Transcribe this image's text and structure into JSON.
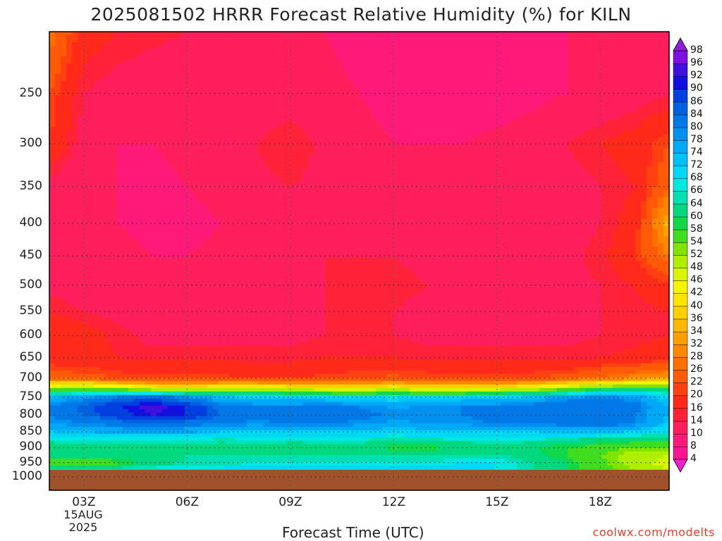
{
  "header": {
    "title": "2025081502 HRRR Forecast Relative Humidity (%) for KILN"
  },
  "footer": {
    "credit": "coolwx.com/modelts"
  },
  "chart_data": {
    "type": "heatmap",
    "title": "2025081502 HRRR Forecast Relative Humidity (%) for KILN",
    "xlabel": "Forecast Time (UTC)",
    "ylabel": "",
    "x_ticks": [
      "03Z",
      "06Z",
      "09Z",
      "12Z",
      "15Z",
      "18Z"
    ],
    "x_tick_hours": [
      3,
      6,
      9,
      12,
      15,
      18
    ],
    "x_date_labels": [
      "15AUG",
      "2025"
    ],
    "xlim_hours": [
      2,
      20
    ],
    "y_ticks": [
      250,
      300,
      350,
      400,
      450,
      500,
      550,
      600,
      650,
      700,
      750,
      800,
      850,
      900,
      950,
      1000
    ],
    "y_tick_labels": [
      "250",
      "300",
      "350",
      "400",
      "450",
      "500",
      "550",
      "600",
      "650",
      "700",
      "750",
      "800",
      "850",
      "900",
      "950",
      "1000"
    ],
    "ylim_hpa": [
      200,
      1050
    ],
    "y_scale": "log-pressure",
    "grid": true,
    "surface_pressure_hpa": 975,
    "colorbar": {
      "levels": [
        4,
        8,
        10,
        14,
        16,
        20,
        22,
        26,
        28,
        32,
        34,
        36,
        40,
        42,
        46,
        48,
        52,
        54,
        58,
        60,
        64,
        66,
        68,
        72,
        74,
        78,
        80,
        84,
        86,
        90,
        92,
        96,
        98
      ],
      "labels": [
        "4",
        "8",
        "10",
        "14",
        "16",
        "20",
        "22",
        "26",
        "28",
        "32",
        "34",
        "36",
        "40",
        "42",
        "46",
        "48",
        "52",
        "54",
        "58",
        "60",
        "64",
        "66",
        "68",
        "72",
        "74",
        "78",
        "80",
        "84",
        "86",
        "90",
        "92",
        "96",
        "98"
      ],
      "colors": [
        "#f01fd0",
        "#ff1493",
        "#ff1a7a",
        "#ff1f5c",
        "#ff2238",
        "#ff2a1a",
        "#ff4010",
        "#ff5a08",
        "#ff7000",
        "#ff8800",
        "#ffa000",
        "#ffb800",
        "#ffd000",
        "#ffe400",
        "#f8f400",
        "#d8f400",
        "#b0ee00",
        "#80e400",
        "#40dc20",
        "#10d848",
        "#00d880",
        "#00e0b0",
        "#00e8e0",
        "#00d8f8",
        "#00c0f8",
        "#00a8f8",
        "#0090f0",
        "#0078e8",
        "#0060e0",
        "#0040e0",
        "#1010e0",
        "#4010e0",
        "#8010e0",
        "#9020d8"
      ],
      "extend": "both"
    },
    "pressure_levels": [
      200,
      250,
      300,
      350,
      400,
      450,
      500,
      550,
      600,
      650,
      700,
      725,
      750,
      775,
      800,
      825,
      850,
      875,
      900,
      925,
      950,
      975
    ],
    "time_hours": [
      2,
      3,
      4,
      5,
      6,
      7,
      8,
      9,
      10,
      11,
      12,
      13,
      14,
      15,
      16,
      17,
      18,
      19,
      20
    ],
    "rh_percent": [
      [
        28,
        18,
        16,
        15,
        14,
        12,
        12,
        11,
        10,
        9,
        9,
        8,
        8,
        8,
        9,
        10,
        11,
        12,
        13
      ],
      [
        22,
        14,
        12,
        11,
        10,
        10,
        11,
        12,
        11,
        10,
        9,
        8,
        8,
        8,
        9,
        10,
        11,
        12,
        14
      ],
      [
        20,
        12,
        10,
        10,
        11,
        12,
        14,
        16,
        13,
        11,
        10,
        10,
        10,
        11,
        12,
        14,
        16,
        18,
        22
      ],
      [
        12,
        11,
        10,
        9,
        10,
        11,
        13,
        14,
        13,
        12,
        11,
        10,
        10,
        10,
        11,
        12,
        14,
        16,
        26
      ],
      [
        11,
        10,
        10,
        9,
        9,
        10,
        11,
        12,
        12,
        12,
        12,
        11,
        10,
        10,
        11,
        12,
        14,
        18,
        36
      ],
      [
        12,
        11,
        11,
        10,
        10,
        11,
        12,
        13,
        14,
        14,
        14,
        13,
        12,
        12,
        12,
        13,
        15,
        20,
        28
      ],
      [
        13,
        12,
        11,
        10,
        10,
        11,
        12,
        13,
        14,
        15,
        15,
        14,
        13,
        12,
        12,
        13,
        14,
        16,
        20
      ],
      [
        16,
        14,
        13,
        12,
        12,
        12,
        13,
        13,
        14,
        14,
        14,
        13,
        13,
        12,
        12,
        13,
        14,
        15,
        16
      ],
      [
        20,
        18,
        15,
        13,
        13,
        13,
        13,
        13,
        14,
        14,
        14,
        13,
        13,
        13,
        13,
        13,
        14,
        15,
        16
      ],
      [
        18,
        17,
        16,
        15,
        15,
        15,
        15,
        15,
        16,
        16,
        16,
        15,
        15,
        15,
        15,
        15,
        16,
        17,
        18
      ],
      [
        24,
        24,
        22,
        21,
        21,
        21,
        20,
        20,
        21,
        22,
        23,
        22,
        21,
        21,
        22,
        24,
        27,
        30,
        33
      ],
      [
        50,
        52,
        48,
        44,
        42,
        45,
        46,
        44,
        42,
        41,
        44,
        41,
        40,
        42,
        45,
        50,
        56,
        58,
        58
      ],
      [
        74,
        78,
        82,
        84,
        80,
        74,
        72,
        71,
        70,
        70,
        69,
        70,
        71,
        72,
        74,
        78,
        80,
        78,
        70
      ],
      [
        80,
        85,
        90,
        94,
        90,
        82,
        80,
        80,
        82,
        80,
        77,
        79,
        80,
        80,
        82,
        84,
        84,
        82,
        74
      ],
      [
        80,
        84,
        88,
        92,
        90,
        84,
        82,
        82,
        83,
        82,
        79,
        80,
        80,
        82,
        84,
        84,
        82,
        80,
        74
      ],
      [
        78,
        80,
        82,
        84,
        82,
        80,
        79,
        80,
        80,
        79,
        77,
        78,
        79,
        80,
        80,
        82,
        84,
        80,
        72
      ],
      [
        72,
        74,
        75,
        76,
        75,
        72,
        72,
        72,
        72,
        72,
        71,
        72,
        72,
        72,
        72,
        73,
        73,
        72,
        68
      ],
      [
        66,
        66,
        66,
        67,
        66,
        65,
        66,
        66,
        66,
        66,
        64,
        65,
        66,
        66,
        66,
        64,
        62,
        60,
        60
      ],
      [
        60,
        62,
        62,
        63,
        62,
        62,
        62,
        60,
        61,
        62,
        58,
        58,
        60,
        62,
        60,
        58,
        56,
        54,
        54
      ],
      [
        62,
        64,
        64,
        63,
        64,
        64,
        64,
        64,
        64,
        64,
        64,
        64,
        64,
        64,
        62,
        58,
        54,
        50,
        48
      ],
      [
        54,
        52,
        56,
        62,
        64,
        64,
        66,
        66,
        66,
        66,
        66,
        66,
        68,
        68,
        64,
        60,
        55,
        50,
        46
      ],
      [
        66,
        66,
        68,
        68,
        68,
        70,
        70,
        70,
        70,
        70,
        70,
        70,
        70,
        68,
        64,
        60,
        56,
        52,
        48
      ]
    ]
  }
}
